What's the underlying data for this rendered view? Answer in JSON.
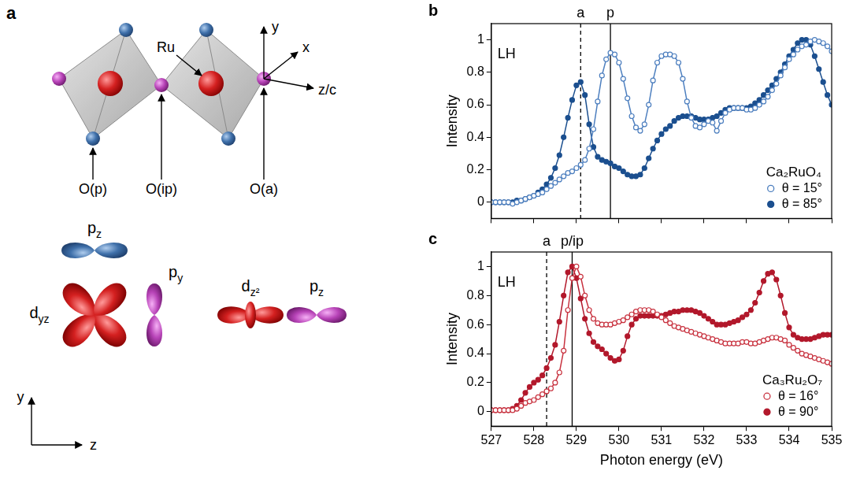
{
  "panel_a": {
    "letter": "a",
    "labels": {
      "ru": "Ru",
      "o_p": "O(p)",
      "o_ip": "O(ip)",
      "o_a": "O(a)"
    },
    "axes": {
      "y": "y",
      "x": "x",
      "z": "z/c"
    },
    "orbitals": [
      {
        "base": "p",
        "sub": "z"
      },
      {
        "base": "d",
        "sub": "yz"
      },
      {
        "base": "p",
        "sub": "y"
      },
      {
        "base": "d",
        "sub": "z²"
      },
      {
        "base": "p",
        "sub": "z"
      }
    ],
    "frame_axes": {
      "y": "y",
      "z": "z"
    }
  },
  "chart_data": [
    {
      "type": "line",
      "panel": "b",
      "annotation": "LH",
      "x": [
        527,
        527.1,
        527.2,
        527.3,
        527.4,
        527.5,
        527.6,
        527.7,
        527.8,
        527.9,
        528,
        528.1,
        528.2,
        528.3,
        528.4,
        528.5,
        528.6,
        528.7,
        528.8,
        528.9,
        529,
        529.1,
        529.2,
        529.3,
        529.4,
        529.5,
        529.6,
        529.7,
        529.8,
        529.9,
        530,
        530.1,
        530.2,
        530.3,
        530.4,
        530.5,
        530.6,
        530.7,
        530.8,
        530.9,
        531,
        531.1,
        531.2,
        531.3,
        531.4,
        531.5,
        531.6,
        531.7,
        531.8,
        531.9,
        532,
        532.1,
        532.2,
        532.3,
        532.4,
        532.5,
        532.6,
        532.7,
        532.8,
        532.9,
        533,
        533.1,
        533.2,
        533.3,
        533.4,
        533.5,
        533.6,
        533.7,
        533.8,
        533.9,
        534,
        534.1,
        534.2,
        534.3,
        534.4,
        534.5,
        534.6,
        534.7,
        534.8,
        534.9,
        535
      ],
      "xlim": [
        527,
        535
      ],
      "xticks": [
        527,
        528,
        529,
        530,
        531,
        532,
        533,
        534,
        535
      ],
      "ylim": [
        -0.1,
        1.1
      ],
      "yticks": [
        0,
        0.2,
        0.4,
        0.6,
        0.8,
        1
      ],
      "y_label": "Intensity",
      "tick_labels": "y",
      "grid": false,
      "legend": "lower right",
      "legend_title": "Ca₂RuO₄",
      "vlines": [
        {
          "x": 529.1,
          "label": "a",
          "line_style": "dashed"
        },
        {
          "x": 529.8,
          "label": "p",
          "line_style": "solid"
        }
      ],
      "series": [
        {
          "name": "θ = 15°",
          "color": "#4d7fbf",
          "marker": "open circle",
          "values": [
            0,
            0,
            0,
            0,
            0,
            -0.01,
            0,
            0.01,
            0.02,
            0.03,
            0.04,
            0.05,
            0.06,
            0.08,
            0.1,
            0.12,
            0.14,
            0.16,
            0.18,
            0.19,
            0.21,
            0.23,
            0.26,
            0.33,
            0.45,
            0.62,
            0.78,
            0.88,
            0.92,
            0.91,
            0.86,
            0.76,
            0.64,
            0.53,
            0.46,
            0.44,
            0.48,
            0.6,
            0.75,
            0.86,
            0.9,
            0.91,
            0.91,
            0.9,
            0.86,
            0.76,
            0.62,
            0.52,
            0.47,
            0.46,
            0.48,
            0.5,
            0.49,
            0.44,
            0.5,
            0.55,
            0.57,
            0.58,
            0.58,
            0.58,
            0.57,
            0.57,
            0.58,
            0.6,
            0.62,
            0.65,
            0.69,
            0.73,
            0.78,
            0.83,
            0.88,
            0.91,
            0.94,
            0.96,
            0.97,
            0.99,
            1.0,
            0.99,
            0.98,
            0.96,
            0.93
          ]
        },
        {
          "name": "θ = 85°",
          "color": "#1b4f8f",
          "marker": "filled circle",
          "values": [
            0,
            0,
            0,
            0,
            0,
            0,
            0.01,
            0.01,
            0.02,
            0.03,
            0.04,
            0.06,
            0.08,
            0.11,
            0.15,
            0.21,
            0.29,
            0.4,
            0.52,
            0.63,
            0.72,
            0.74,
            0.66,
            0.48,
            0.34,
            0.28,
            0.26,
            0.25,
            0.24,
            0.22,
            0.21,
            0.19,
            0.17,
            0.16,
            0.16,
            0.17,
            0.21,
            0.27,
            0.33,
            0.38,
            0.42,
            0.45,
            0.47,
            0.5,
            0.52,
            0.53,
            0.53,
            0.53,
            0.52,
            0.51,
            0.51,
            0.51,
            0.52,
            0.53,
            0.55,
            0.57,
            0.58,
            0.58,
            0.58,
            0.58,
            0.58,
            0.59,
            0.61,
            0.63,
            0.66,
            0.69,
            0.72,
            0.76,
            0.8,
            0.85,
            0.9,
            0.94,
            0.98,
            1.0,
            1.0,
            0.97,
            0.9,
            0.82,
            0.74,
            0.66,
            0.6
          ]
        }
      ]
    },
    {
      "type": "line",
      "panel": "c",
      "annotation": "LH",
      "x": [
        527,
        527.1,
        527.2,
        527.3,
        527.4,
        527.5,
        527.6,
        527.7,
        527.8,
        527.9,
        528,
        528.1,
        528.2,
        528.3,
        528.4,
        528.5,
        528.6,
        528.7,
        528.8,
        528.9,
        529,
        529.1,
        529.2,
        529.3,
        529.4,
        529.5,
        529.6,
        529.7,
        529.8,
        529.9,
        530,
        530.1,
        530.2,
        530.3,
        530.4,
        530.5,
        530.6,
        530.7,
        530.8,
        530.9,
        531,
        531.1,
        531.2,
        531.3,
        531.4,
        531.5,
        531.6,
        531.7,
        531.8,
        531.9,
        532,
        532.1,
        532.2,
        532.3,
        532.4,
        532.5,
        532.6,
        532.7,
        532.8,
        532.9,
        533,
        533.1,
        533.2,
        533.3,
        533.4,
        533.5,
        533.6,
        533.7,
        533.8,
        533.9,
        534,
        534.1,
        534.2,
        534.3,
        534.4,
        534.5,
        534.6,
        534.7,
        534.8,
        534.9,
        535
      ],
      "xlim": [
        527,
        535
      ],
      "xticks": [
        527,
        528,
        529,
        530,
        531,
        532,
        533,
        534,
        535
      ],
      "ylim": [
        -0.1,
        1.1
      ],
      "yticks": [
        0,
        0.2,
        0.4,
        0.6,
        0.8,
        1
      ],
      "x_label": "Photon energy (eV)",
      "y_label": "Intensity",
      "tick_labels": true,
      "grid": false,
      "legend": "lower right",
      "legend_title": "Ca₃Ru₂O₇",
      "vlines": [
        {
          "x": 528.3,
          "label": "a",
          "line_style": "dashed"
        },
        {
          "x": 528.9,
          "label": "p/ip",
          "line_style": "solid"
        }
      ],
      "series": [
        {
          "name": "θ = 16°",
          "color": "#c8323f",
          "marker": "open circle",
          "values": [
            0.01,
            0.01,
            0.01,
            0.01,
            0.01,
            0.01,
            0.02,
            0.04,
            0.06,
            0.07,
            0.08,
            0.1,
            0.12,
            0.14,
            0.16,
            0.2,
            0.27,
            0.42,
            0.7,
            0.92,
            1.0,
            0.93,
            0.8,
            0.7,
            0.64,
            0.61,
            0.6,
            0.6,
            0.6,
            0.61,
            0.62,
            0.63,
            0.65,
            0.67,
            0.69,
            0.7,
            0.7,
            0.7,
            0.69,
            0.67,
            0.65,
            0.63,
            0.61,
            0.59,
            0.58,
            0.57,
            0.56,
            0.55,
            0.54,
            0.53,
            0.52,
            0.51,
            0.5,
            0.49,
            0.48,
            0.47,
            0.47,
            0.47,
            0.47,
            0.48,
            0.48,
            0.47,
            0.47,
            0.48,
            0.49,
            0.5,
            0.51,
            0.51,
            0.5,
            0.49,
            0.46,
            0.44,
            0.42,
            0.4,
            0.39,
            0.38,
            0.37,
            0.36,
            0.35,
            0.34,
            0.33
          ]
        },
        {
          "name": "θ = 90°",
          "color": "#b2182b",
          "marker": "filled circle",
          "values": [
            0.01,
            0.01,
            0.01,
            0.01,
            0.01,
            0.02,
            0.04,
            0.08,
            0.13,
            0.17,
            0.2,
            0.22,
            0.25,
            0.3,
            0.37,
            0.46,
            0.62,
            0.8,
            0.96,
            1.0,
            0.92,
            0.78,
            0.64,
            0.54,
            0.48,
            0.45,
            0.43,
            0.4,
            0.37,
            0.35,
            0.36,
            0.42,
            0.52,
            0.6,
            0.64,
            0.66,
            0.66,
            0.66,
            0.66,
            0.66,
            0.66,
            0.67,
            0.68,
            0.69,
            0.69,
            0.7,
            0.7,
            0.7,
            0.69,
            0.68,
            0.66,
            0.64,
            0.62,
            0.6,
            0.6,
            0.6,
            0.61,
            0.62,
            0.63,
            0.65,
            0.67,
            0.7,
            0.75,
            0.82,
            0.9,
            0.95,
            0.96,
            0.91,
            0.8,
            0.68,
            0.58,
            0.53,
            0.51,
            0.5,
            0.5,
            0.5,
            0.51,
            0.52,
            0.53,
            0.53,
            0.53
          ]
        }
      ]
    }
  ]
}
